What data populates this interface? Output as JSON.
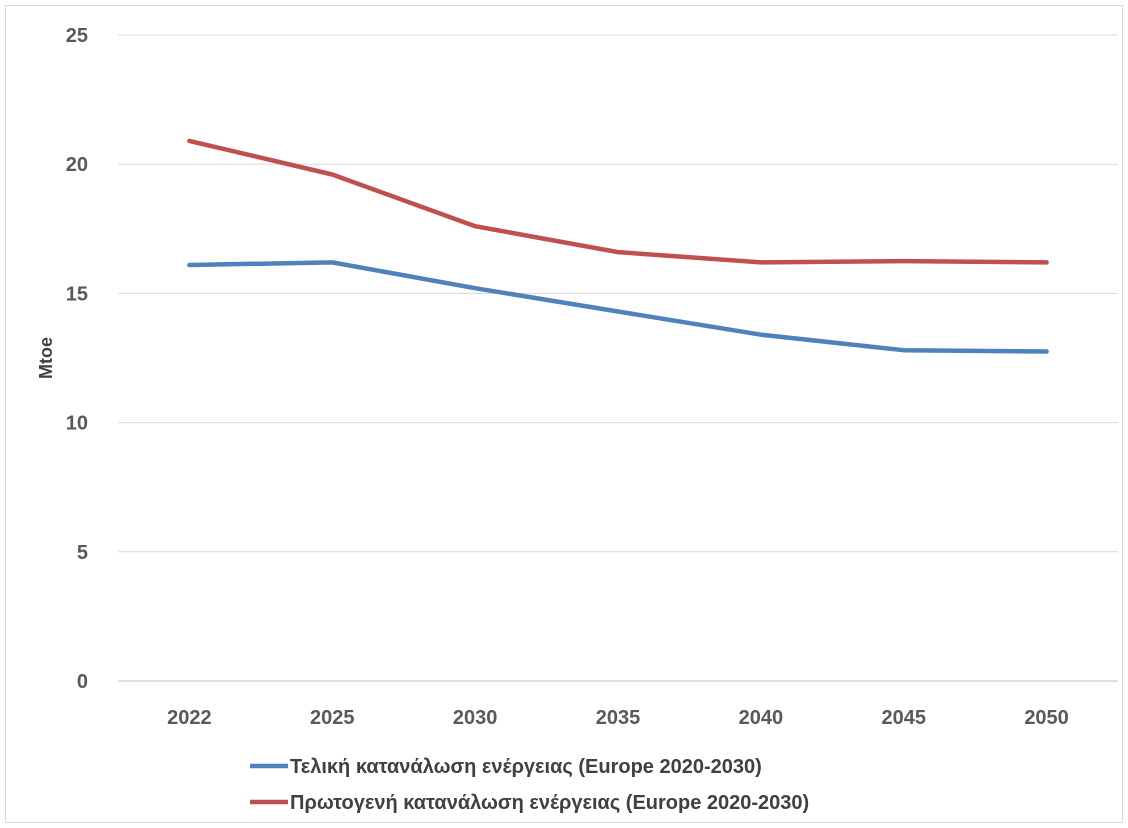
{
  "chart_data": {
    "type": "line",
    "title": "",
    "xlabel": "",
    "ylabel": "Mtoe",
    "x": [
      "2022",
      "2025",
      "2030",
      "2035",
      "2040",
      "2045",
      "2050"
    ],
    "ylim": [
      0,
      25
    ],
    "yticks": [
      0,
      5,
      10,
      15,
      20,
      25
    ],
    "grid": true,
    "legend_position": "bottom",
    "series": [
      {
        "name": "Τελική κατανάλωση ενέργειας (Europe 2020-2030)",
        "color": "#4f81bd",
        "values": [
          16.1,
          16.2,
          15.2,
          14.3,
          13.4,
          12.8,
          12.75
        ]
      },
      {
        "name": "Πρωτογενή κατανάλωση ενέργειας (Europe 2020-2030)",
        "color": "#c0504d",
        "values": [
          20.9,
          19.6,
          17.6,
          16.6,
          16.2,
          16.25,
          16.2
        ]
      }
    ]
  }
}
